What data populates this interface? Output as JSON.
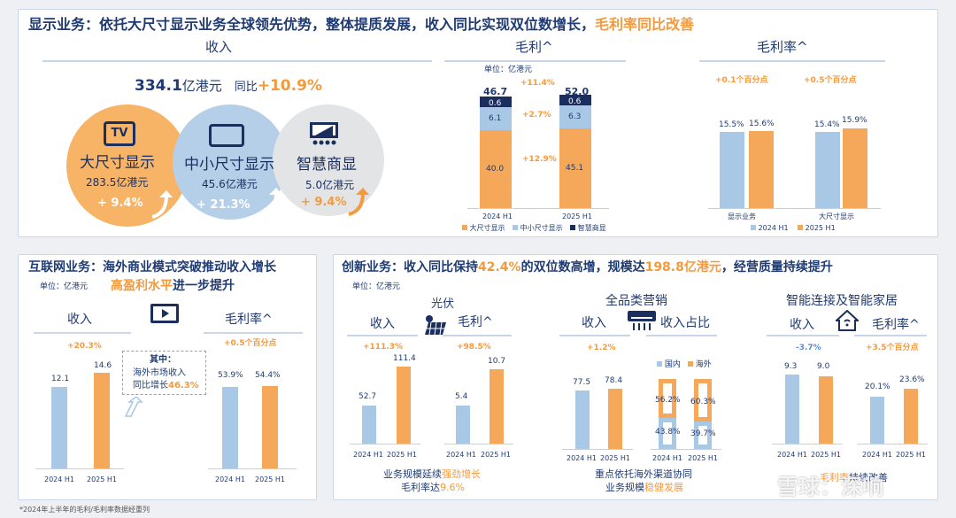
{
  "display": {
    "title_a": "显示业务：",
    "title_b": "依托大尺寸显示业务全球领先优势，整体提质发展，收入同比实现双位数增长，",
    "title_c": "毛利率同比改善",
    "revenue_header": "收入",
    "total_value": "334.1",
    "total_unit": "亿港元",
    "total_yoy_label": "同比",
    "total_yoy": "+10.9%",
    "segments": [
      {
        "name": "大尺寸显示",
        "value": "283.5亿港元",
        "growth": "+ 9.4%",
        "icon": "tv-icon",
        "icon_text": "TV"
      },
      {
        "name": "中小尺寸显示",
        "value": "45.6亿港元",
        "growth": "+ 21.3%",
        "icon": "tablet-icon"
      },
      {
        "name": "智慧商显",
        "value": "5.0亿港元",
        "growth": "+ 9.4%",
        "icon": "conference-display-icon"
      }
    ],
    "gp_header": "毛利^",
    "gp_unit": "单位：亿港元",
    "gp_totals": [
      "46.7",
      "52.0"
    ],
    "gp_stack": {
      "large": [
        "40.0",
        "45.1"
      ],
      "small": [
        "6.1",
        "6.3"
      ],
      "smart": [
        "0.6",
        "0.6"
      ]
    },
    "gp_growth": [
      "+11.4%",
      "+2.7%",
      "+12.9%"
    ],
    "gp_x": [
      "2024 H1",
      "2025 H1"
    ],
    "gp_legend": [
      "大尺寸显示",
      "中小尺寸显示",
      "智慧商显"
    ],
    "gm_header": "毛利率^",
    "gm_changes": [
      "+0.1个百分点",
      "+0.5个百分点"
    ],
    "gm_values": [
      [
        "15.5%",
        "15.6%"
      ],
      [
        "15.4%",
        "15.9%"
      ]
    ],
    "gm_x": [
      "显示业务",
      "大尺寸显示"
    ],
    "gm_legend": [
      "2024 H1",
      "2025 H1"
    ]
  },
  "internet": {
    "title_a": "互联网业务：",
    "title_b": "海外商业模式突破推动收入增长",
    "title_c": "高盈利水平",
    "title_d": "进一步提升",
    "unit": "单位：亿港元",
    "rev_header": "收入",
    "rev_growth": "+20.3%",
    "rev_values": [
      "12.1",
      "14.6"
    ],
    "note_title": "其中：",
    "note_l1": "海外市场收入",
    "note_l2": "同比增长",
    "note_pct": "46.3%",
    "gm_header": "毛利率^",
    "gm_change": "+0.5个百分点",
    "gm_values": [
      "53.9%",
      "54.4%"
    ],
    "x": [
      "2024 H1",
      "2025 H1"
    ],
    "icon": "play-screen-icon"
  },
  "innovation": {
    "title_a": "创新业务：",
    "title_b": "收入同比保持",
    "title_pct": "42.4%",
    "title_c": "的双位数高增，规模达",
    "title_amt": "198.8亿港元",
    "title_d": "，经营质量持续提升",
    "unit": "单位：亿港元",
    "pv_title": "光伏",
    "pv_rev_header": "收入",
    "pv_rev_growth": "+111.3%",
    "pv_rev_values": [
      "52.7",
      "111.4"
    ],
    "pv_gp_header": "毛利^",
    "pv_gp_growth": "+98.5%",
    "pv_gp_values": [
      "5.4",
      "10.7"
    ],
    "pv_foot_a": "业务规模延续",
    "pv_foot_b": "强劲增长",
    "pv_foot_c": "毛利率达",
    "pv_foot_d": "9.6%",
    "ac_title": "全品类营销",
    "ac_rev_header": "收入",
    "ac_rev_growth": "+1.2%",
    "ac_rev_values": [
      "77.5",
      "78.4"
    ],
    "ac_share_header": "收入占比",
    "ac_share_legend": [
      "国内",
      "海外"
    ],
    "ac_share_2024": [
      "43.8%",
      "56.2%"
    ],
    "ac_share_2025": [
      "39.7%",
      "60.3%"
    ],
    "ac_foot_a": "重点依托海外渠道协同",
    "ac_foot_b": "业务规模",
    "ac_foot_c": "稳健发展",
    "sh_title": "智能连接及智能家居",
    "sh_rev_header": "收入",
    "sh_rev_growth": "-3.7%",
    "sh_rev_values": [
      "9.3",
      "9.0"
    ],
    "sh_gm_header": "毛利率^",
    "sh_gm_change": "+3.5个百分点",
    "sh_gm_values": [
      "20.1%",
      "23.6%"
    ],
    "sh_foot_a": "毛利率",
    "sh_foot_b": "持续改善",
    "x": [
      "2024 H1",
      "2025 H1"
    ]
  },
  "footnote": "*2024年上半年的毛利/毛利率数据经重列",
  "watermark": "雪球：深响",
  "colors": {
    "navy": "#1f3b73",
    "orange": "#f59a3c",
    "light_blue": "#a9c8e6",
    "bar_orange": "#f5a85a",
    "dark_navy": "#1b2f5e"
  },
  "chart_data": [
    {
      "type": "bar",
      "title": "毛利^",
      "categories": [
        "2024 H1",
        "2025 H1"
      ],
      "series": [
        {
          "name": "大尺寸显示",
          "values": [
            40.0,
            45.1
          ]
        },
        {
          "name": "中小尺寸显示",
          "values": [
            6.1,
            6.3
          ]
        },
        {
          "name": "智慧商显",
          "values": [
            0.6,
            0.6
          ]
        }
      ],
      "totals": [
        46.7,
        52.0
      ]
    },
    {
      "type": "bar",
      "title": "毛利率^",
      "categories": [
        "显示业务",
        "大尺寸显示"
      ],
      "series": [
        {
          "name": "2024 H1",
          "values": [
            15.5,
            15.4
          ]
        },
        {
          "name": "2025 H1",
          "values": [
            15.6,
            15.9
          ]
        }
      ]
    },
    {
      "type": "bar",
      "title": "收入",
      "categories": [
        "2024 H1",
        "2025 H1"
      ],
      "values": [
        12.1,
        14.6
      ]
    },
    {
      "type": "bar",
      "title": "毛利率^",
      "categories": [
        "2024 H1",
        "2025 H1"
      ],
      "values": [
        53.9,
        54.4
      ]
    },
    {
      "type": "bar",
      "title": "收入",
      "categories": [
        "2024 H1",
        "2025 H1"
      ],
      "values": [
        52.7,
        111.4
      ]
    },
    {
      "type": "bar",
      "title": "毛利^",
      "categories": [
        "2024 H1",
        "2025 H1"
      ],
      "values": [
        5.4,
        10.7
      ]
    },
    {
      "type": "bar",
      "title": "收入",
      "categories": [
        "2024 H1",
        "2025 H1"
      ],
      "values": [
        77.5,
        78.4
      ]
    },
    {
      "type": "bar",
      "title": "收入占比",
      "categories": [
        "2024 H1",
        "2025 H1"
      ],
      "series": [
        {
          "name": "国内",
          "values": [
            43.8,
            39.7
          ]
        },
        {
          "name": "海外",
          "values": [
            56.2,
            60.3
          ]
        }
      ]
    },
    {
      "type": "bar",
      "title": "收入",
      "categories": [
        "2024 H1",
        "2025 H1"
      ],
      "values": [
        9.3,
        9.0
      ]
    },
    {
      "type": "bar",
      "title": "毛利率^",
      "categories": [
        "2024 H1",
        "2025 H1"
      ],
      "values": [
        20.1,
        23.6
      ]
    }
  ]
}
